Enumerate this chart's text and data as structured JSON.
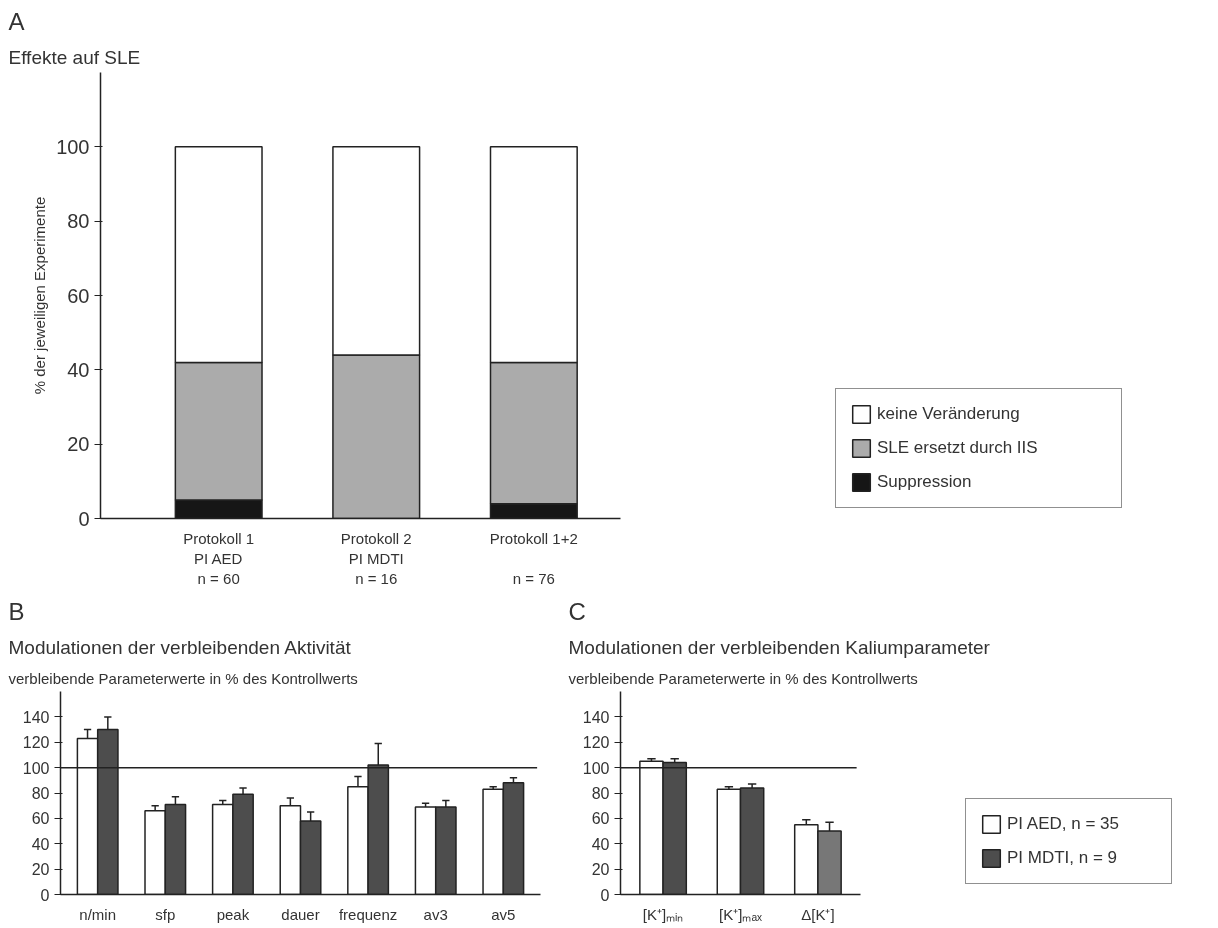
{
  "chart_data": [
    {
      "type": "bar",
      "title": "Effekte auf SLE",
      "annotations": [
        "A"
      ],
      "ylabel": "% der jeweiligen Experimente",
      "stacked": true,
      "legend": "right",
      "categories": [
        "Protokoll 1\nPI AED\nn = 60",
        "Protokoll 2\nPI MDTI\nn = 16",
        "Protokoll 1+2\n\nn = 76"
      ],
      "series": [
        {
          "name": "Suppression",
          "color": "#161616",
          "values": [
            5,
            0,
            4
          ]
        },
        {
          "name": "SLE ersetzt durch IIS",
          "color": "#ababab",
          "values": [
            37,
            44,
            38
          ]
        },
        {
          "name": "keine Veränderung",
          "color": "#ffffff",
          "values": [
            58,
            56,
            58
          ]
        }
      ],
      "ylim": [
        0,
        120
      ],
      "yticks": [
        0,
        20,
        40,
        60,
        80,
        100
      ]
    },
    {
      "type": "bar",
      "title": "Modulationen der verbleibenden  Aktivität",
      "subtitle": "verbleibende Parameterwerte in % des Kontrollwerts",
      "annotations": [
        "B"
      ],
      "categories": [
        "n/min",
        "sfp",
        "peak",
        "dauer",
        "frequenz",
        "av3",
        "av5"
      ],
      "series": [
        {
          "color": "#ffffff",
          "values": [
            123,
            66,
            71,
            70,
            85,
            69,
            83
          ],
          "errors": [
            [
              123,
              130
            ],
            [
              66,
              70
            ],
            [
              71,
              74
            ],
            [
              70,
              76
            ],
            [
              85,
              93
            ],
            [
              69,
              72
            ],
            [
              83,
              85
            ]
          ]
        },
        {
          "color": "#4d4d4d",
          "values": [
            130,
            71,
            79,
            58,
            102,
            69,
            88
          ],
          "errors": [
            [
              130,
              140
            ],
            [
              71,
              77
            ],
            [
              79,
              84
            ],
            [
              58,
              65
            ],
            [
              102,
              119
            ],
            [
              69,
              74
            ],
            [
              88,
              92
            ]
          ]
        }
      ],
      "ylim": [
        0,
        160
      ],
      "yticks": [
        0,
        20,
        40,
        60,
        80,
        100,
        120,
        140
      ],
      "ref_lines": [
        {
          "axis": "y",
          "value": 100
        }
      ]
    },
    {
      "type": "bar",
      "title": "Modulationen der verbleibenden  Kaliumparameter",
      "subtitle": "verbleibende Parameterwerte in % des Kontrollwerts",
      "annotations": [
        "C"
      ],
      "legend": "right",
      "categories": [
        "[K⁺]ₘᵢₙ",
        "[K⁺]ₘₐₓ",
        "Δ[K⁺]"
      ],
      "series": [
        {
          "name": "PI AED, n = 35",
          "color": "#ffffff",
          "values": [
            105,
            83,
            55
          ],
          "errors": [
            [
              105,
              107
            ],
            [
              83,
              85
            ],
            [
              55,
              59
            ]
          ]
        },
        {
          "name": "PI MDTI, n = 9",
          "color": "#4d4d4d",
          "colors": [
            "#4d4d4d",
            "#4d4d4d",
            "#777777"
          ],
          "values": [
            104,
            84,
            50
          ],
          "errors": [
            [
              104,
              107
            ],
            [
              84,
              87
            ],
            [
              50,
              57
            ]
          ]
        }
      ],
      "ylim": [
        0,
        160
      ],
      "yticks": [
        0,
        20,
        40,
        60,
        80,
        100,
        120,
        140
      ],
      "ref_lines": [
        {
          "axis": "y",
          "value": 100
        }
      ]
    }
  ]
}
